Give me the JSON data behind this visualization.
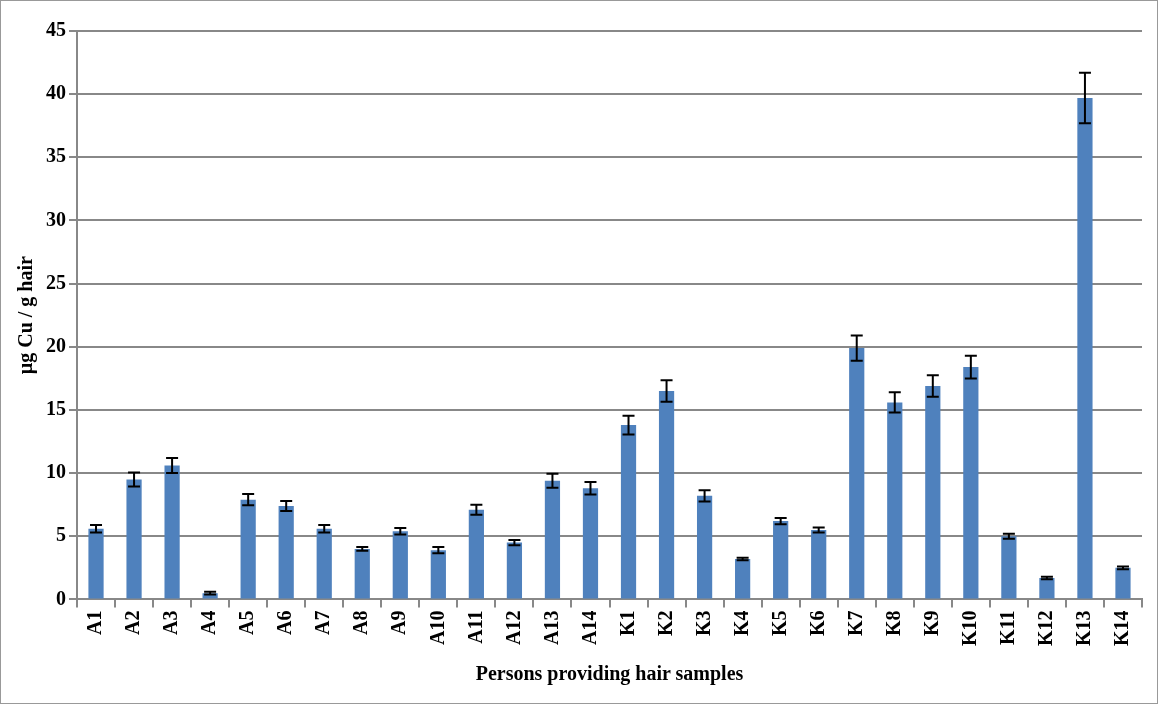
{
  "chart_data": {
    "type": "bar",
    "xlabel": "Persons providing hair samples",
    "ylabel": "µg Cu / g hair",
    "categories": [
      "A1",
      "A2",
      "A3",
      "A4",
      "A5",
      "A6",
      "A7",
      "A8",
      "A9",
      "A10",
      "A11",
      "A12",
      "A13",
      "A14",
      "K1",
      "K2",
      "K3",
      "K4",
      "K5",
      "K6",
      "K7",
      "K8",
      "K9",
      "K10",
      "K11",
      "K12",
      "K13",
      "K14"
    ],
    "values": [
      5.6,
      9.5,
      10.6,
      0.5,
      7.9,
      7.4,
      5.6,
      4.0,
      5.4,
      3.9,
      7.1,
      4.5,
      9.4,
      8.8,
      13.8,
      16.5,
      8.2,
      3.2,
      6.2,
      5.5,
      19.9,
      15.6,
      16.9,
      18.4,
      5.0,
      1.7,
      39.7,
      2.5
    ],
    "errors": [
      0.3,
      0.55,
      0.6,
      0.1,
      0.45,
      0.4,
      0.3,
      0.15,
      0.25,
      0.25,
      0.4,
      0.2,
      0.55,
      0.5,
      0.75,
      0.85,
      0.45,
      0.1,
      0.25,
      0.2,
      1.0,
      0.8,
      0.85,
      0.9,
      0.2,
      0.1,
      2.0,
      0.1
    ],
    "color": "#4f81bd",
    "ylim": [
      0,
      45
    ],
    "yticks": [
      0,
      5,
      10,
      15,
      20,
      25,
      30,
      35,
      40,
      45
    ],
    "grid": "y",
    "legend": false
  }
}
